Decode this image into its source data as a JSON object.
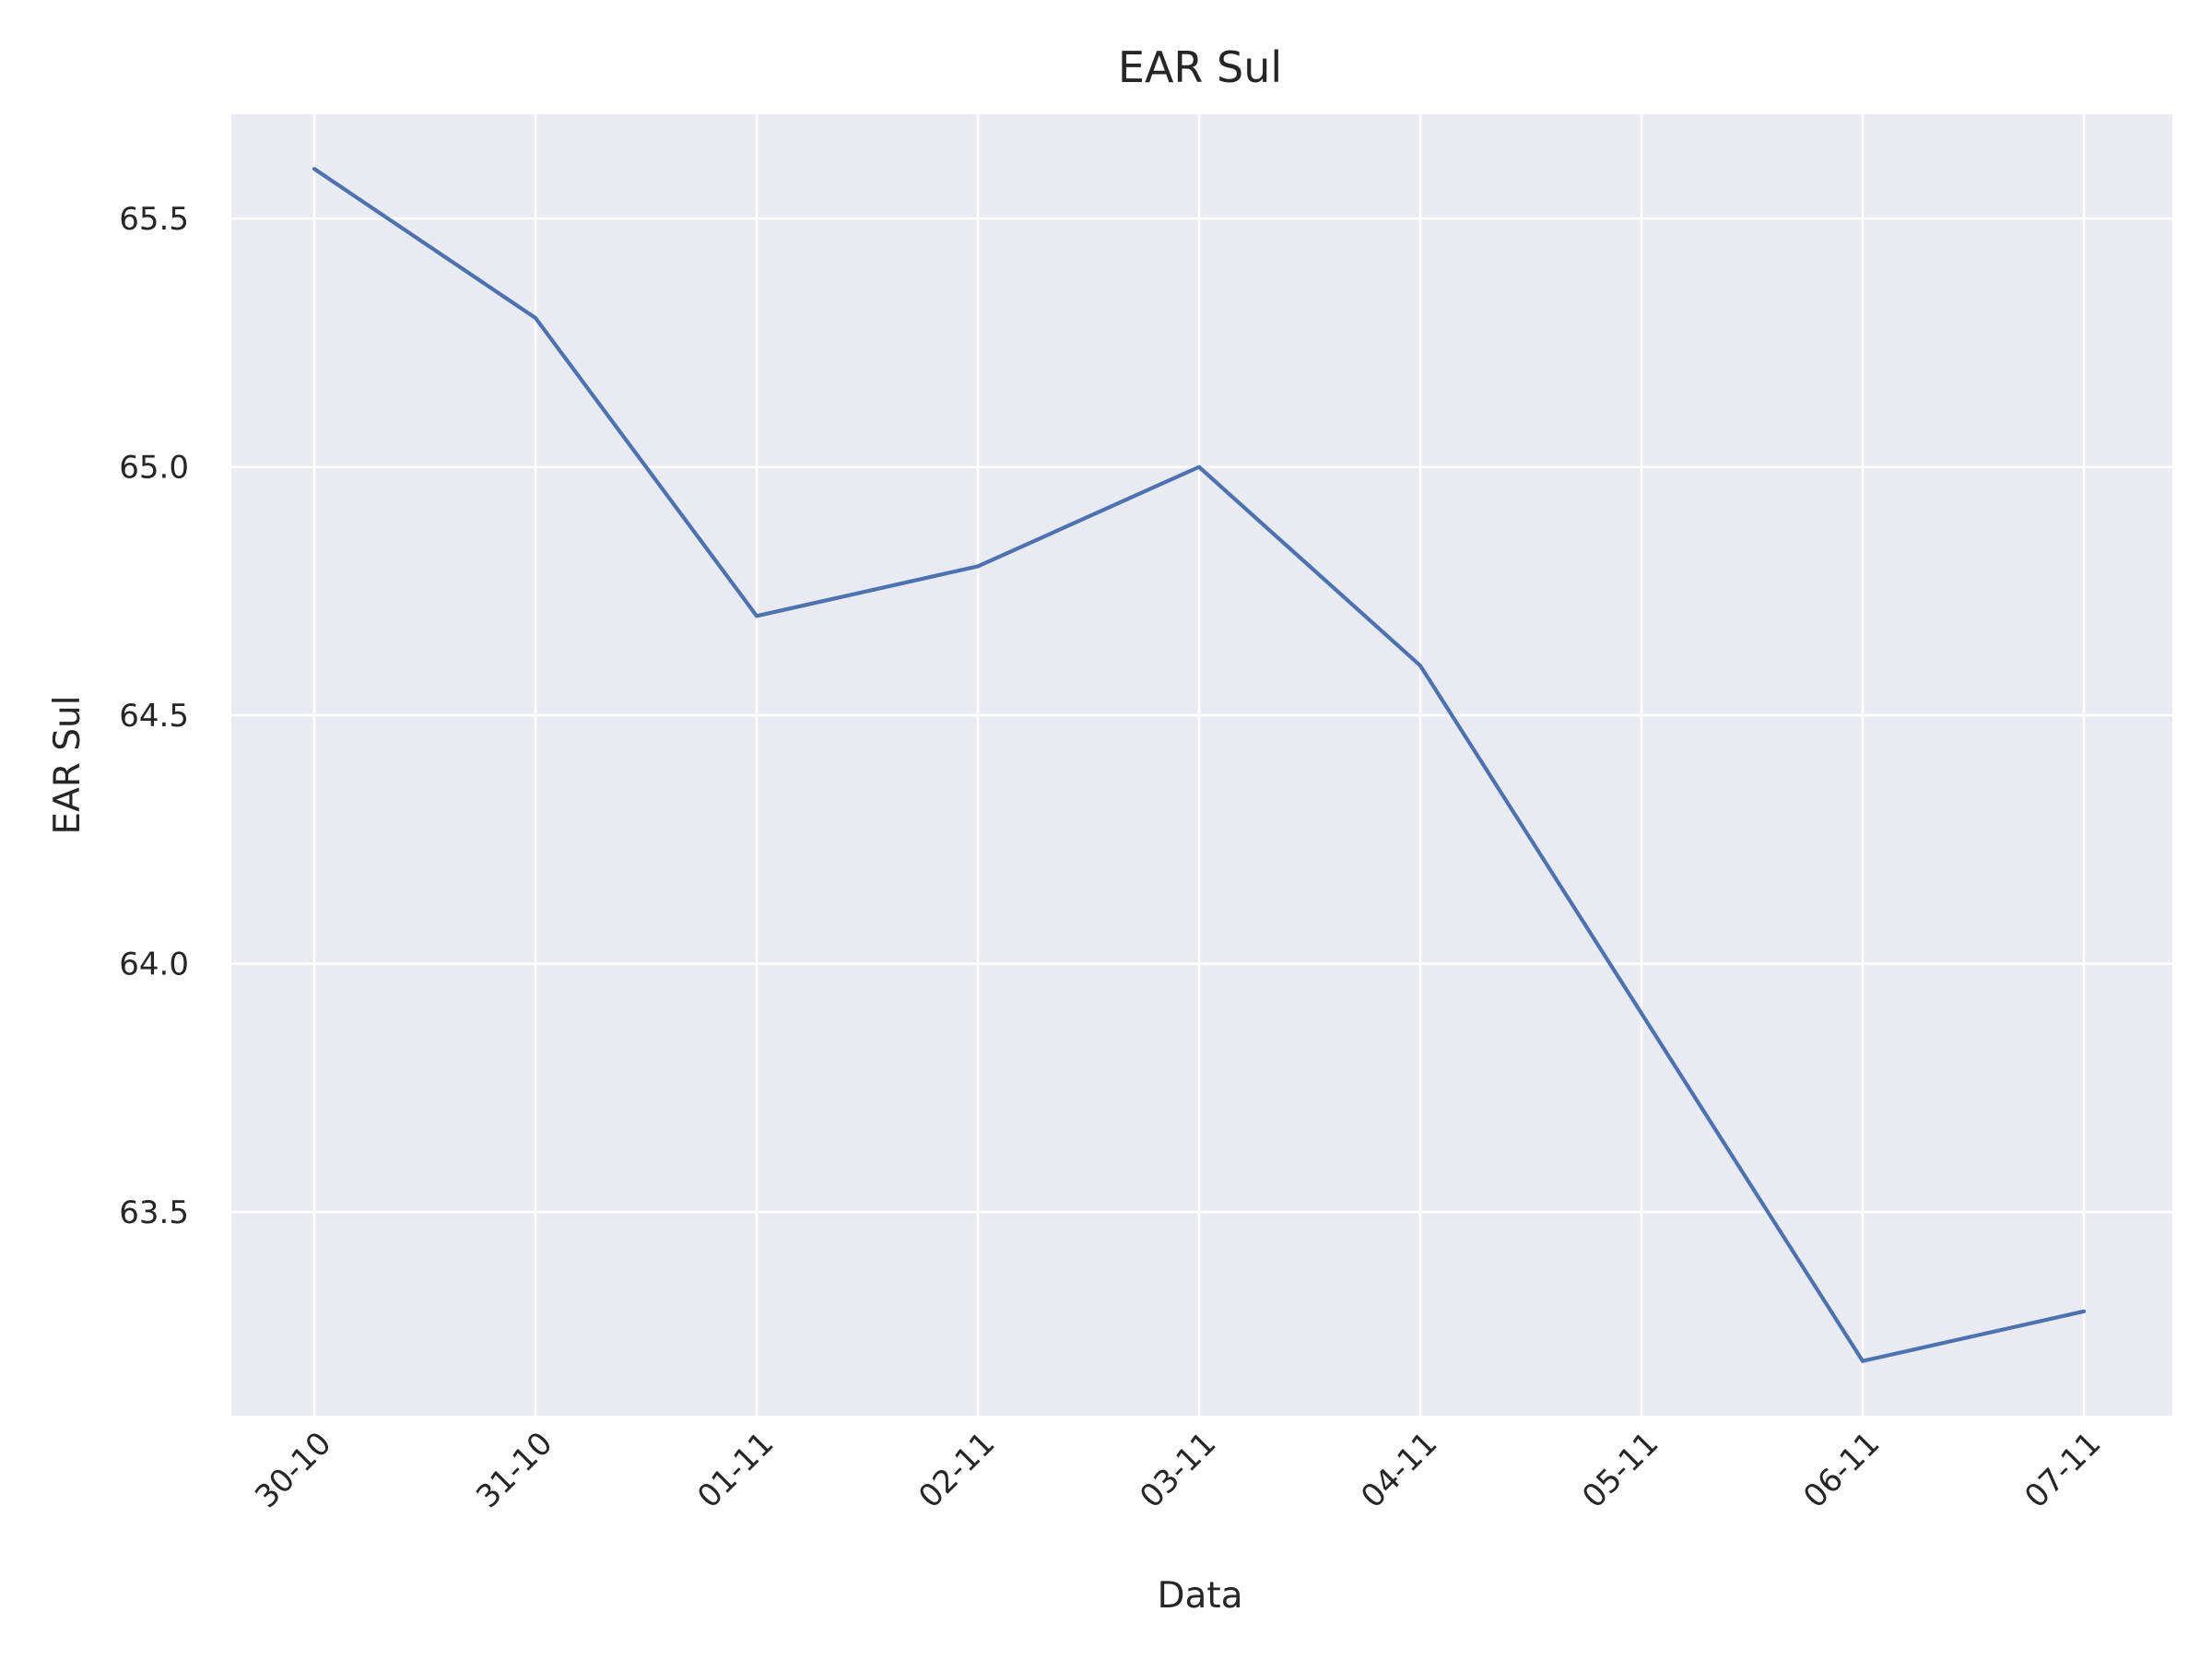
{
  "chart_data": {
    "type": "line",
    "title": "EAR Sul",
    "xlabel": "Data",
    "ylabel": "EAR Sul",
    "categories": [
      "30-10",
      "31-10",
      "01-11",
      "02-11",
      "03-11",
      "04-11",
      "05-11",
      "06-11",
      "07-11"
    ],
    "series": [
      {
        "color": "#4c72b0",
        "values": [
          65.6,
          65.3,
          64.7,
          64.8,
          65.0,
          64.6,
          63.9,
          63.2,
          63.3
        ]
      }
    ],
    "yticks": [
      "63.5",
      "64.0",
      "64.5",
      "65.0",
      "65.5"
    ],
    "ylim": [
      63.09,
      65.71
    ],
    "grid": true,
    "background": "#eaeaf2",
    "xtick_rotation_deg": 45
  }
}
